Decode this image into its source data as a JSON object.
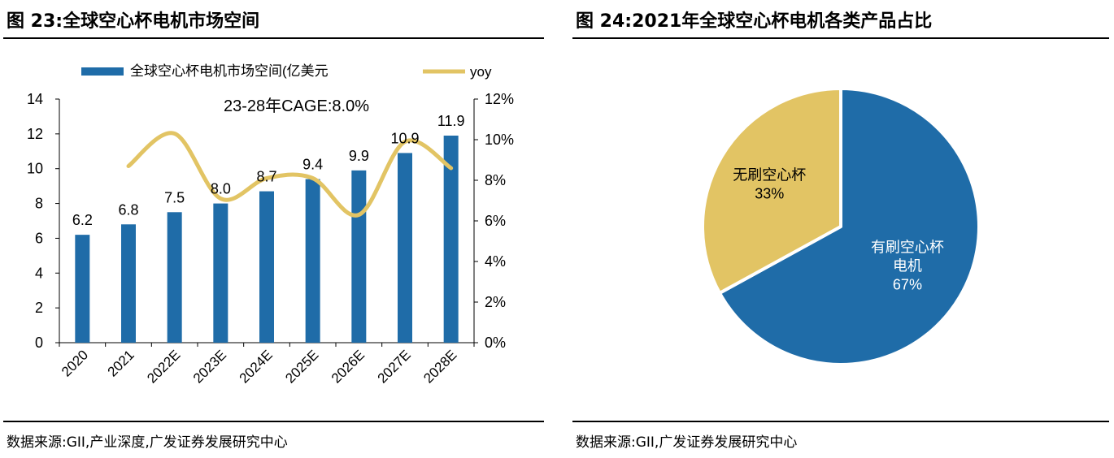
{
  "left": {
    "title": "图 23:全球空心杯电机市场空间",
    "source": "数据来源:GII,产业深度,广发证券发展研究中心"
  },
  "right": {
    "title": "图 24:2021年全球空心杯电机各类产品占比",
    "source": "数据来源:GII,广发证券发展研究中心"
  },
  "chart_data": [
    {
      "type": "bar",
      "categories": [
        "2020",
        "2021",
        "2022E",
        "2023E",
        "2024E",
        "2025E",
        "2026E",
        "2027E",
        "2028E"
      ],
      "series": [
        {
          "name": "全球空心杯电机市场空间(亿美元",
          "kind": "bar",
          "axis": "left",
          "color": "#1F6CA8",
          "values": [
            6.2,
            6.8,
            7.5,
            8.0,
            8.7,
            9.4,
            9.9,
            10.9,
            11.9
          ]
        },
        {
          "name": "yoy",
          "kind": "line",
          "axis": "right",
          "color": "#E2C464",
          "values": [
            null,
            8.7,
            10.3,
            7.1,
            8.1,
            8.1,
            6.3,
            9.9,
            8.6
          ]
        }
      ],
      "data_labels": [
        "6.2",
        "6.8",
        "7.5",
        "8.0",
        "8.7",
        "9.4",
        "9.9",
        "10.9",
        "11.9"
      ],
      "annotation": "23-28年CAGE:8.0%",
      "ylim": [
        0,
        14
      ],
      "yticks": [
        "0",
        "2",
        "4",
        "6",
        "8",
        "10",
        "12",
        "14"
      ],
      "y2lim": [
        0,
        12
      ],
      "y2ticks": [
        "0%",
        "2%",
        "4%",
        "6%",
        "8%",
        "10%",
        "12%"
      ],
      "legend_position": "top",
      "grid": false
    },
    {
      "type": "pie",
      "slices": [
        {
          "label_lines": [
            "有刷空心杯",
            "电机"
          ],
          "value": 67,
          "pct_label": "67%",
          "color": "#1F6CA8",
          "label_color": "#FFFFFF"
        },
        {
          "label_lines": [
            "无刷空心杯"
          ],
          "value": 33,
          "pct_label": "33%",
          "color": "#E2C464",
          "label_color": "#000000"
        }
      ],
      "start_angle": "12 o'clock, clockwise",
      "legend": "none"
    }
  ]
}
